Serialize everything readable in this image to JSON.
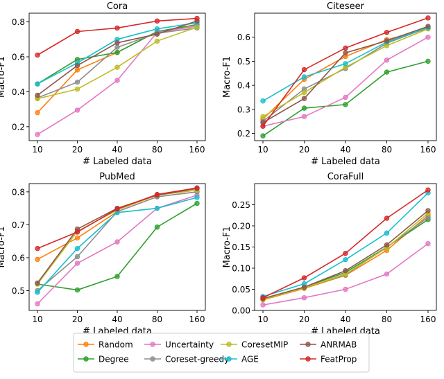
{
  "chart_data": [
    {
      "type": "line",
      "title": "Cora",
      "xlabel": "# Labeled data",
      "ylabel": "Macro-F1",
      "categories": [
        "10",
        "20",
        "40",
        "80",
        "160"
      ],
      "ylim": [
        0.12,
        0.85
      ],
      "yticks": [
        0.2,
        0.4,
        0.6,
        0.8
      ],
      "ytick_labels": [
        "0.2",
        "0.4",
        "0.6",
        "0.8"
      ],
      "series": [
        {
          "name": "Random",
          "values": [
            0.28,
            0.525,
            0.625,
            0.745,
            0.775
          ]
        },
        {
          "name": "Degree",
          "values": [
            0.445,
            0.585,
            0.625,
            0.745,
            0.785
          ]
        },
        {
          "name": "Uncertainty",
          "values": [
            0.155,
            0.295,
            0.465,
            0.74,
            0.775
          ]
        },
        {
          "name": "Coreset-greedy",
          "values": [
            0.365,
            0.455,
            0.655,
            0.735,
            0.765
          ]
        },
        {
          "name": "CoresetMIP",
          "values": [
            0.36,
            0.415,
            0.54,
            0.69,
            0.77
          ]
        },
        {
          "name": "AGE",
          "values": [
            0.445,
            0.565,
            0.7,
            0.76,
            0.795
          ]
        },
        {
          "name": "ANRMAB",
          "values": [
            0.38,
            0.55,
            0.68,
            0.73,
            0.805
          ]
        },
        {
          "name": "FeatProp",
          "values": [
            0.61,
            0.745,
            0.765,
            0.805,
            0.82
          ]
        }
      ]
    },
    {
      "type": "line",
      "title": "Citeseer",
      "xlabel": "# Labeled data",
      "ylabel": "Macro-F1",
      "categories": [
        "10",
        "20",
        "40",
        "80",
        "160"
      ],
      "ylim": [
        0.17,
        0.7
      ],
      "yticks": [
        0.2,
        0.3,
        0.4,
        0.5,
        0.6
      ],
      "ytick_labels": [
        "0.2",
        "0.3",
        "0.4",
        "0.5",
        "0.6"
      ],
      "series": [
        {
          "name": "Random",
          "values": [
            0.26,
            0.425,
            0.52,
            0.59,
            0.635
          ]
        },
        {
          "name": "Degree",
          "values": [
            0.19,
            0.305,
            0.32,
            0.455,
            0.5
          ]
        },
        {
          "name": "Uncertainty",
          "values": [
            0.23,
            0.27,
            0.35,
            0.505,
            0.6
          ]
        },
        {
          "name": "Coreset-greedy",
          "values": [
            0.25,
            0.385,
            0.47,
            0.575,
            0.64
          ]
        },
        {
          "name": "CoresetMIP",
          "values": [
            0.27,
            0.37,
            0.475,
            0.565,
            0.635
          ]
        },
        {
          "name": "AGE",
          "values": [
            0.335,
            0.435,
            0.49,
            0.58,
            0.64
          ]
        },
        {
          "name": "ANRMAB",
          "values": [
            0.245,
            0.345,
            0.535,
            0.585,
            0.645
          ]
        },
        {
          "name": "FeatProp",
          "values": [
            0.23,
            0.465,
            0.555,
            0.62,
            0.68
          ]
        }
      ]
    },
    {
      "type": "line",
      "title": "PubMed",
      "xlabel": "# Labeled data",
      "ylabel": "Macro-F1",
      "categories": [
        "10",
        "20",
        "40",
        "80",
        "160"
      ],
      "ylim": [
        0.44,
        0.825
      ],
      "yticks": [
        0.5,
        0.6,
        0.7,
        0.8
      ],
      "ytick_labels": [
        "0.5",
        "0.6",
        "0.7",
        "0.8"
      ],
      "series": [
        {
          "name": "Random",
          "values": [
            0.595,
            0.66,
            0.74,
            0.785,
            0.8
          ]
        },
        {
          "name": "Degree",
          "values": [
            0.52,
            0.502,
            0.543,
            0.693,
            0.765
          ]
        },
        {
          "name": "Uncertainty",
          "values": [
            0.46,
            0.583,
            0.648,
            0.75,
            0.79
          ]
        },
        {
          "name": "Coreset-greedy",
          "values": [
            0.5,
            0.603,
            0.74,
            0.785,
            0.8
          ]
        },
        {
          "name": "CoresetMIP",
          "values": [
            0.52,
            0.68,
            0.745,
            0.79,
            0.805
          ]
        },
        {
          "name": "AGE",
          "values": [
            0.495,
            0.628,
            0.737,
            0.75,
            0.783
          ]
        },
        {
          "name": "ANRMAB",
          "values": [
            0.523,
            0.687,
            0.75,
            0.79,
            0.81
          ]
        },
        {
          "name": "FeatProp",
          "values": [
            0.628,
            0.678,
            0.748,
            0.792,
            0.812
          ]
        }
      ]
    },
    {
      "type": "line",
      "title": "CoraFull",
      "xlabel": "# Labeled data",
      "ylabel": "Macro-F1",
      "categories": [
        "10",
        "20",
        "40",
        "80",
        "160"
      ],
      "ylim": [
        0.0,
        0.3
      ],
      "yticks": [
        0.0,
        0.05,
        0.1,
        0.15,
        0.2,
        0.25
      ],
      "ytick_labels": [
        "0.00",
        "0.05",
        "0.10",
        "0.15",
        "0.20",
        "0.25"
      ],
      "series": [
        {
          "name": "Random",
          "values": [
            0.025,
            0.052,
            0.083,
            0.142,
            0.225
          ]
        },
        {
          "name": "Degree",
          "values": [
            0.027,
            0.055,
            0.09,
            0.15,
            0.215
          ]
        },
        {
          "name": "Uncertainty",
          "values": [
            0.013,
            0.03,
            0.05,
            0.086,
            0.158
          ]
        },
        {
          "name": "Coreset-greedy",
          "values": [
            0.026,
            0.054,
            0.084,
            0.15,
            0.22
          ]
        },
        {
          "name": "CoresetMIP",
          "values": [
            0.026,
            0.053,
            0.086,
            0.148,
            0.23
          ]
        },
        {
          "name": "AGE",
          "values": [
            0.033,
            0.063,
            0.12,
            0.183,
            0.278
          ]
        },
        {
          "name": "ANRMAB",
          "values": [
            0.028,
            0.055,
            0.094,
            0.155,
            0.236
          ]
        },
        {
          "name": "FeatProp",
          "values": [
            0.03,
            0.077,
            0.135,
            0.218,
            0.285
          ]
        }
      ]
    }
  ],
  "legend": {
    "columns": 4,
    "items": [
      {
        "name": "Random",
        "color": "#ff7f0e"
      },
      {
        "name": "Degree",
        "color": "#2ca02c"
      },
      {
        "name": "Uncertainty",
        "color": "#e377c2"
      },
      {
        "name": "Coreset-greedy",
        "color": "#8c8c8c"
      },
      {
        "name": "CoresetMIP",
        "color": "#bcbd22"
      },
      {
        "name": "AGE",
        "color": "#17becf"
      },
      {
        "name": "ANRMAB",
        "color": "#8c564b"
      },
      {
        "name": "FeatProp",
        "color": "#d62728"
      }
    ]
  }
}
